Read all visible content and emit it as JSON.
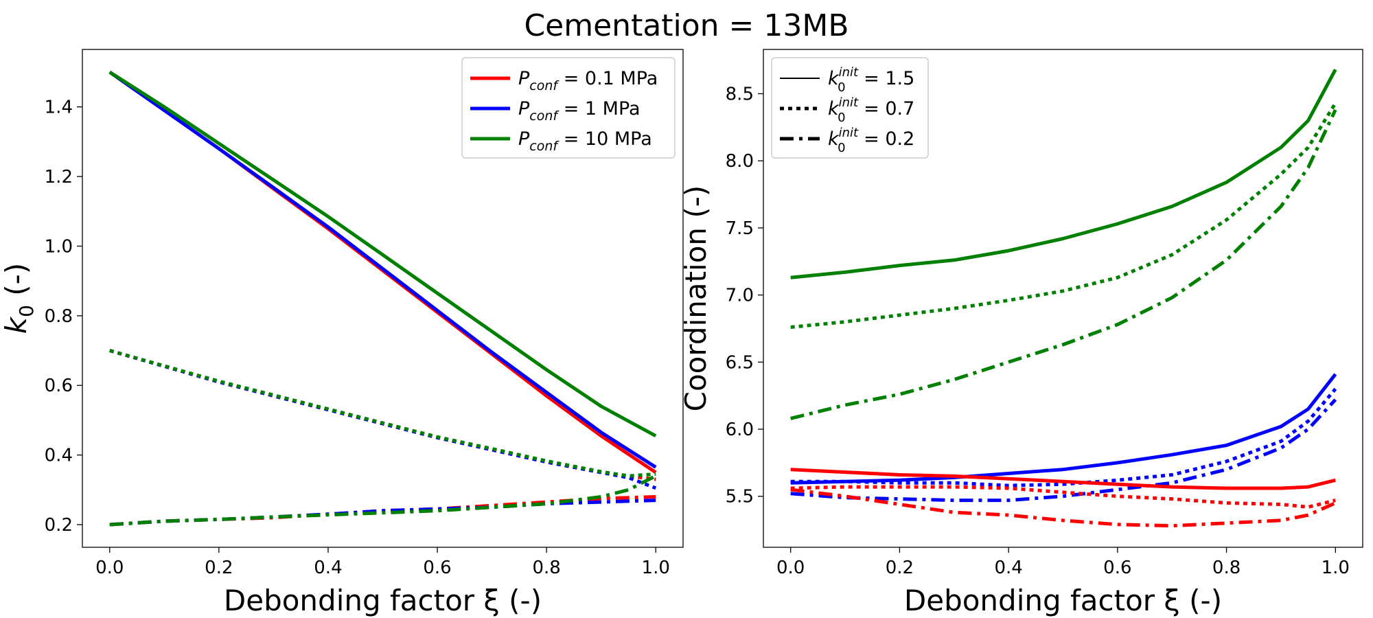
{
  "figure_title": "Cementation = 13MB",
  "colors": {
    "p01": "#ff0000",
    "p1": "#0000ff",
    "p10": "#008000",
    "frame": "#000000"
  },
  "chart_data": [
    {
      "type": "line",
      "title": "",
      "xlabel": "Debonding factor ξ (-)",
      "ylabel": "k0 (-)",
      "xlim": [
        -0.05,
        1.05
      ],
      "ylim": [
        0.135,
        1.565
      ],
      "xticks": [
        0.0,
        0.2,
        0.4,
        0.6,
        0.8,
        1.0
      ],
      "xtick_labels": [
        "0.0",
        "0.2",
        "0.4",
        "0.6",
        "0.8",
        "1.0"
      ],
      "yticks": [
        0.2,
        0.4,
        0.6,
        0.8,
        1.0,
        1.2,
        1.4
      ],
      "ytick_labels": [
        "0.2",
        "0.4",
        "0.6",
        "0.8",
        "1.0",
        "1.2",
        "1.4"
      ],
      "legend": {
        "position": "upper right",
        "entries": [
          {
            "main": "P",
            "sub": "conf",
            "rest": " = 0.1 MPa",
            "color_key": "p01",
            "style": "solid"
          },
          {
            "main": "P",
            "sub": "conf",
            "rest": " = 1 MPa",
            "color_key": "p1",
            "style": "solid"
          },
          {
            "main": "P",
            "sub": "conf",
            "rest": " = 10 MPa",
            "color_key": "p10",
            "style": "solid"
          }
        ]
      },
      "series": [
        {
          "name": "P_conf = 0.1 MPa, k0_init = 1.5",
          "color_key": "p01",
          "style": "solid",
          "x": [
            0,
            0.1,
            0.2,
            0.3,
            0.4,
            0.5,
            0.6,
            0.7,
            0.8,
            0.9,
            1.0
          ],
          "y": [
            1.5,
            1.39,
            1.28,
            1.165,
            1.05,
            0.93,
            0.81,
            0.69,
            0.57,
            0.455,
            0.35
          ]
        },
        {
          "name": "P_conf = 1 MPa, k0_init = 1.5",
          "color_key": "p1",
          "style": "solid",
          "x": [
            0,
            0.1,
            0.2,
            0.3,
            0.4,
            0.5,
            0.6,
            0.7,
            0.8,
            0.9,
            1.0
          ],
          "y": [
            1.5,
            1.39,
            1.28,
            1.168,
            1.055,
            0.935,
            0.815,
            0.695,
            0.58,
            0.465,
            0.365
          ]
        },
        {
          "name": "P_conf = 10 MPa, k0_init = 1.5",
          "color_key": "p10",
          "style": "solid",
          "x": [
            0,
            0.1,
            0.2,
            0.3,
            0.4,
            0.5,
            0.6,
            0.7,
            0.8,
            0.9,
            1.0
          ],
          "y": [
            1.5,
            1.4,
            1.295,
            1.19,
            1.085,
            0.975,
            0.865,
            0.755,
            0.645,
            0.54,
            0.455
          ]
        },
        {
          "name": "P_conf = 0.1 MPa, k0_init = 0.7",
          "color_key": "p01",
          "style": "dotted",
          "x": [
            0,
            0.1,
            0.2,
            0.3,
            0.4,
            0.5,
            0.6,
            0.7,
            0.8,
            0.9,
            0.95,
            1.0
          ],
          "y": [
            0.7,
            0.655,
            0.61,
            0.57,
            0.53,
            0.49,
            0.45,
            0.415,
            0.38,
            0.35,
            0.34,
            0.33
          ]
        },
        {
          "name": "P_conf = 1 MPa, k0_init = 0.7",
          "color_key": "p1",
          "style": "dotted",
          "x": [
            0,
            0.1,
            0.2,
            0.3,
            0.4,
            0.5,
            0.6,
            0.7,
            0.8,
            0.9,
            0.95,
            1.0
          ],
          "y": [
            0.7,
            0.655,
            0.61,
            0.57,
            0.53,
            0.49,
            0.45,
            0.415,
            0.38,
            0.35,
            0.335,
            0.305
          ]
        },
        {
          "name": "P_conf = 10 MPa, k0_init = 0.7",
          "color_key": "p10",
          "style": "dotted",
          "x": [
            0,
            0.1,
            0.2,
            0.3,
            0.4,
            0.5,
            0.6,
            0.7,
            0.8,
            0.9,
            0.95,
            1.0
          ],
          "y": [
            0.7,
            0.656,
            0.612,
            0.572,
            0.532,
            0.492,
            0.452,
            0.418,
            0.383,
            0.352,
            0.34,
            0.345
          ]
        },
        {
          "name": "P_conf = 0.1 MPa, k0_init = 0.2",
          "color_key": "p01",
          "style": "dashdot",
          "x": [
            0,
            0.1,
            0.2,
            0.3,
            0.4,
            0.5,
            0.6,
            0.7,
            0.8,
            0.9,
            1.0
          ],
          "y": [
            0.2,
            0.21,
            0.215,
            0.22,
            0.23,
            0.24,
            0.245,
            0.255,
            0.265,
            0.275,
            0.28
          ]
        },
        {
          "name": "P_conf = 1 MPa, k0_init = 0.2",
          "color_key": "p1",
          "style": "dashdot",
          "x": [
            0,
            0.1,
            0.2,
            0.3,
            0.4,
            0.5,
            0.6,
            0.7,
            0.8,
            0.9,
            1.0
          ],
          "y": [
            0.2,
            0.21,
            0.215,
            0.222,
            0.23,
            0.24,
            0.245,
            0.25,
            0.26,
            0.265,
            0.27
          ]
        },
        {
          "name": "P_conf = 10 MPa, k0_init = 0.2",
          "color_key": "p10",
          "style": "dashdot",
          "x": [
            0,
            0.1,
            0.2,
            0.3,
            0.4,
            0.5,
            0.6,
            0.7,
            0.8,
            0.9,
            0.95,
            1.0
          ],
          "y": [
            0.2,
            0.21,
            0.215,
            0.222,
            0.228,
            0.234,
            0.24,
            0.25,
            0.26,
            0.28,
            0.3,
            0.34
          ]
        }
      ]
    },
    {
      "type": "line",
      "title": "",
      "xlabel": "Debonding factor ξ (-)",
      "ylabel": "Coordination (-)",
      "xlim": [
        -0.05,
        1.05
      ],
      "ylim": [
        5.12,
        8.83
      ],
      "xticks": [
        0.0,
        0.2,
        0.4,
        0.6,
        0.8,
        1.0
      ],
      "xtick_labels": [
        "0.0",
        "0.2",
        "0.4",
        "0.6",
        "0.8",
        "1.0"
      ],
      "yticks": [
        5.5,
        6.0,
        6.5,
        7.0,
        7.5,
        8.0,
        8.5
      ],
      "ytick_labels": [
        "5.5",
        "6.0",
        "6.5",
        "7.0",
        "7.5",
        "8.0",
        "8.5"
      ],
      "legend": {
        "position": "upper left",
        "entries": [
          {
            "main": "k",
            "sub": "0",
            "sup": "init",
            "rest": " = 1.5",
            "color_key": "frame",
            "style": "solid"
          },
          {
            "main": "k",
            "sub": "0",
            "sup": "init",
            "rest": " = 0.7",
            "color_key": "frame",
            "style": "dotted"
          },
          {
            "main": "k",
            "sub": "0",
            "sup": "init",
            "rest": " = 0.2",
            "color_key": "frame",
            "style": "dashdot"
          }
        ]
      },
      "series": [
        {
          "name": "P_conf = 10 MPa, k0_init = 1.5",
          "color_key": "p10",
          "style": "solid",
          "x": [
            0,
            0.1,
            0.2,
            0.3,
            0.4,
            0.5,
            0.6,
            0.7,
            0.8,
            0.9,
            0.95,
            1.0
          ],
          "y": [
            7.13,
            7.17,
            7.22,
            7.26,
            7.33,
            7.42,
            7.53,
            7.66,
            7.84,
            8.1,
            8.3,
            8.68
          ]
        },
        {
          "name": "P_conf = 10 MPa, k0_init = 0.7",
          "color_key": "p10",
          "style": "dotted",
          "x": [
            0,
            0.1,
            0.2,
            0.3,
            0.4,
            0.5,
            0.6,
            0.7,
            0.8,
            0.9,
            0.95,
            1.0
          ],
          "y": [
            6.76,
            6.8,
            6.85,
            6.9,
            6.96,
            7.03,
            7.13,
            7.3,
            7.56,
            7.9,
            8.1,
            8.43
          ]
        },
        {
          "name": "P_conf = 10 MPa, k0_init = 0.2",
          "color_key": "p10",
          "style": "dashdot",
          "x": [
            0,
            0.1,
            0.2,
            0.3,
            0.4,
            0.5,
            0.6,
            0.7,
            0.8,
            0.9,
            0.95,
            1.0
          ],
          "y": [
            6.08,
            6.18,
            6.26,
            6.37,
            6.5,
            6.63,
            6.78,
            6.98,
            7.26,
            7.66,
            7.95,
            8.38
          ]
        },
        {
          "name": "P_conf = 1 MPa, k0_init = 1.5",
          "color_key": "p1",
          "style": "solid",
          "x": [
            0,
            0.1,
            0.2,
            0.3,
            0.4,
            0.5,
            0.6,
            0.7,
            0.8,
            0.9,
            0.95,
            1.0
          ],
          "y": [
            5.6,
            5.61,
            5.62,
            5.64,
            5.67,
            5.7,
            5.75,
            5.81,
            5.88,
            6.02,
            6.15,
            6.41
          ]
        },
        {
          "name": "P_conf = 1 MPa, k0_init = 0.7",
          "color_key": "p1",
          "style": "dotted",
          "x": [
            0,
            0.1,
            0.2,
            0.3,
            0.4,
            0.5,
            0.6,
            0.7,
            0.8,
            0.9,
            0.95,
            1.0
          ],
          "y": [
            5.61,
            5.61,
            5.6,
            5.6,
            5.58,
            5.59,
            5.62,
            5.66,
            5.76,
            5.91,
            6.06,
            6.3
          ]
        },
        {
          "name": "P_conf = 1 MPa, k0_init = 0.2",
          "color_key": "p1",
          "style": "dashdot",
          "x": [
            0,
            0.1,
            0.2,
            0.3,
            0.4,
            0.5,
            0.6,
            0.7,
            0.8,
            0.9,
            0.95,
            1.0
          ],
          "y": [
            5.52,
            5.49,
            5.48,
            5.47,
            5.47,
            5.5,
            5.55,
            5.6,
            5.7,
            5.86,
            6.0,
            6.22
          ]
        },
        {
          "name": "P_conf = 0.1 MPa, k0_init = 1.5",
          "color_key": "p01",
          "style": "solid",
          "x": [
            0,
            0.1,
            0.2,
            0.3,
            0.4,
            0.5,
            0.6,
            0.7,
            0.8,
            0.9,
            0.95,
            1.0
          ],
          "y": [
            5.7,
            5.68,
            5.66,
            5.65,
            5.63,
            5.61,
            5.59,
            5.57,
            5.56,
            5.56,
            5.57,
            5.62
          ]
        },
        {
          "name": "P_conf = 0.1 MPa, k0_init = 0.7",
          "color_key": "p01",
          "style": "dotted",
          "x": [
            0,
            0.1,
            0.2,
            0.3,
            0.4,
            0.5,
            0.6,
            0.7,
            0.8,
            0.9,
            0.95,
            1.0
          ],
          "y": [
            5.56,
            5.57,
            5.57,
            5.57,
            5.56,
            5.53,
            5.5,
            5.48,
            5.45,
            5.44,
            5.42,
            5.47
          ]
        },
        {
          "name": "P_conf = 0.1 MPa, k0_init = 0.2",
          "color_key": "p01",
          "style": "dashdot",
          "x": [
            0,
            0.1,
            0.2,
            0.3,
            0.4,
            0.5,
            0.6,
            0.7,
            0.8,
            0.9,
            0.95,
            1.0
          ],
          "y": [
            5.55,
            5.5,
            5.44,
            5.38,
            5.36,
            5.32,
            5.29,
            5.28,
            5.3,
            5.32,
            5.36,
            5.45
          ]
        }
      ]
    }
  ]
}
